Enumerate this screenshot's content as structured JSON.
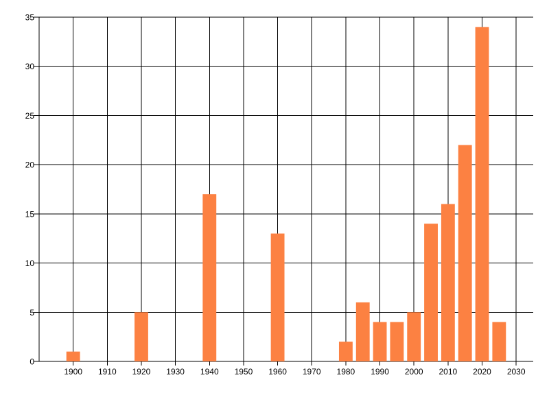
{
  "chart_data": {
    "type": "bar",
    "title": "",
    "xlabel": "",
    "ylabel": "",
    "x": [
      1900,
      1920,
      1940,
      1960,
      1980,
      1985,
      1990,
      1995,
      2000,
      2005,
      2010,
      2015,
      2020,
      2025
    ],
    "values": [
      1,
      5,
      17,
      13,
      2,
      6,
      4,
      4,
      5,
      14,
      16,
      22,
      34,
      4
    ],
    "xlim": [
      1890,
      2035
    ],
    "ylim": [
      0,
      35
    ],
    "x_ticks": [
      1900,
      1910,
      1920,
      1930,
      1940,
      1950,
      1960,
      1970,
      1980,
      1990,
      2000,
      2010,
      2020,
      2030
    ],
    "y_ticks": [
      0,
      5,
      10,
      15,
      20,
      25,
      30,
      35
    ],
    "grid": true,
    "legend": false,
    "bar_width_years": 4,
    "colors": {
      "bar": "#FC8142",
      "grid": "#000000",
      "axis": "#000000",
      "text": "#000000",
      "background": "#FFFFFF"
    }
  }
}
